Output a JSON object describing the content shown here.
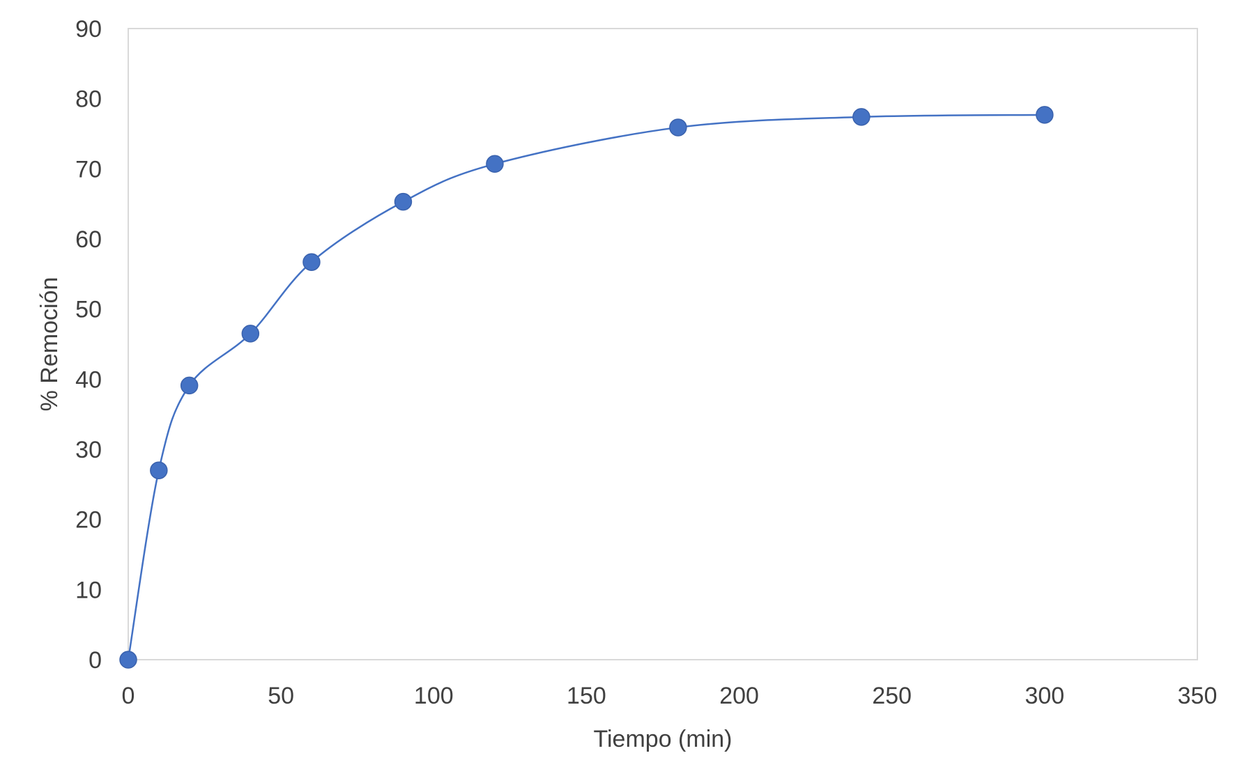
{
  "chart_data": {
    "type": "scatter",
    "title": "",
    "xlabel": "Tiempo (min)",
    "ylabel": "% Remoción",
    "xlim": [
      0,
      350
    ],
    "ylim": [
      0,
      90
    ],
    "x_ticks": [
      "0",
      "50",
      "100",
      "150",
      "200",
      "250",
      "300",
      "350"
    ],
    "y_ticks": [
      "0",
      "10",
      "20",
      "30",
      "40",
      "50",
      "60",
      "70",
      "80",
      "90"
    ],
    "grid": false,
    "legend": "none",
    "smooth_line": true,
    "series": [
      {
        "color": "#4472C4",
        "points": [
          {
            "x": 0,
            "y": 0
          },
          {
            "x": 10,
            "y": 27
          },
          {
            "x": 20,
            "y": 39.1
          },
          {
            "x": 40,
            "y": 46.5
          },
          {
            "x": 60,
            "y": 56.7
          },
          {
            "x": 90,
            "y": 65.3
          },
          {
            "x": 120,
            "y": 70.7
          },
          {
            "x": 180,
            "y": 75.9
          },
          {
            "x": 240,
            "y": 77.4
          },
          {
            "x": 300,
            "y": 77.7
          }
        ]
      }
    ]
  }
}
